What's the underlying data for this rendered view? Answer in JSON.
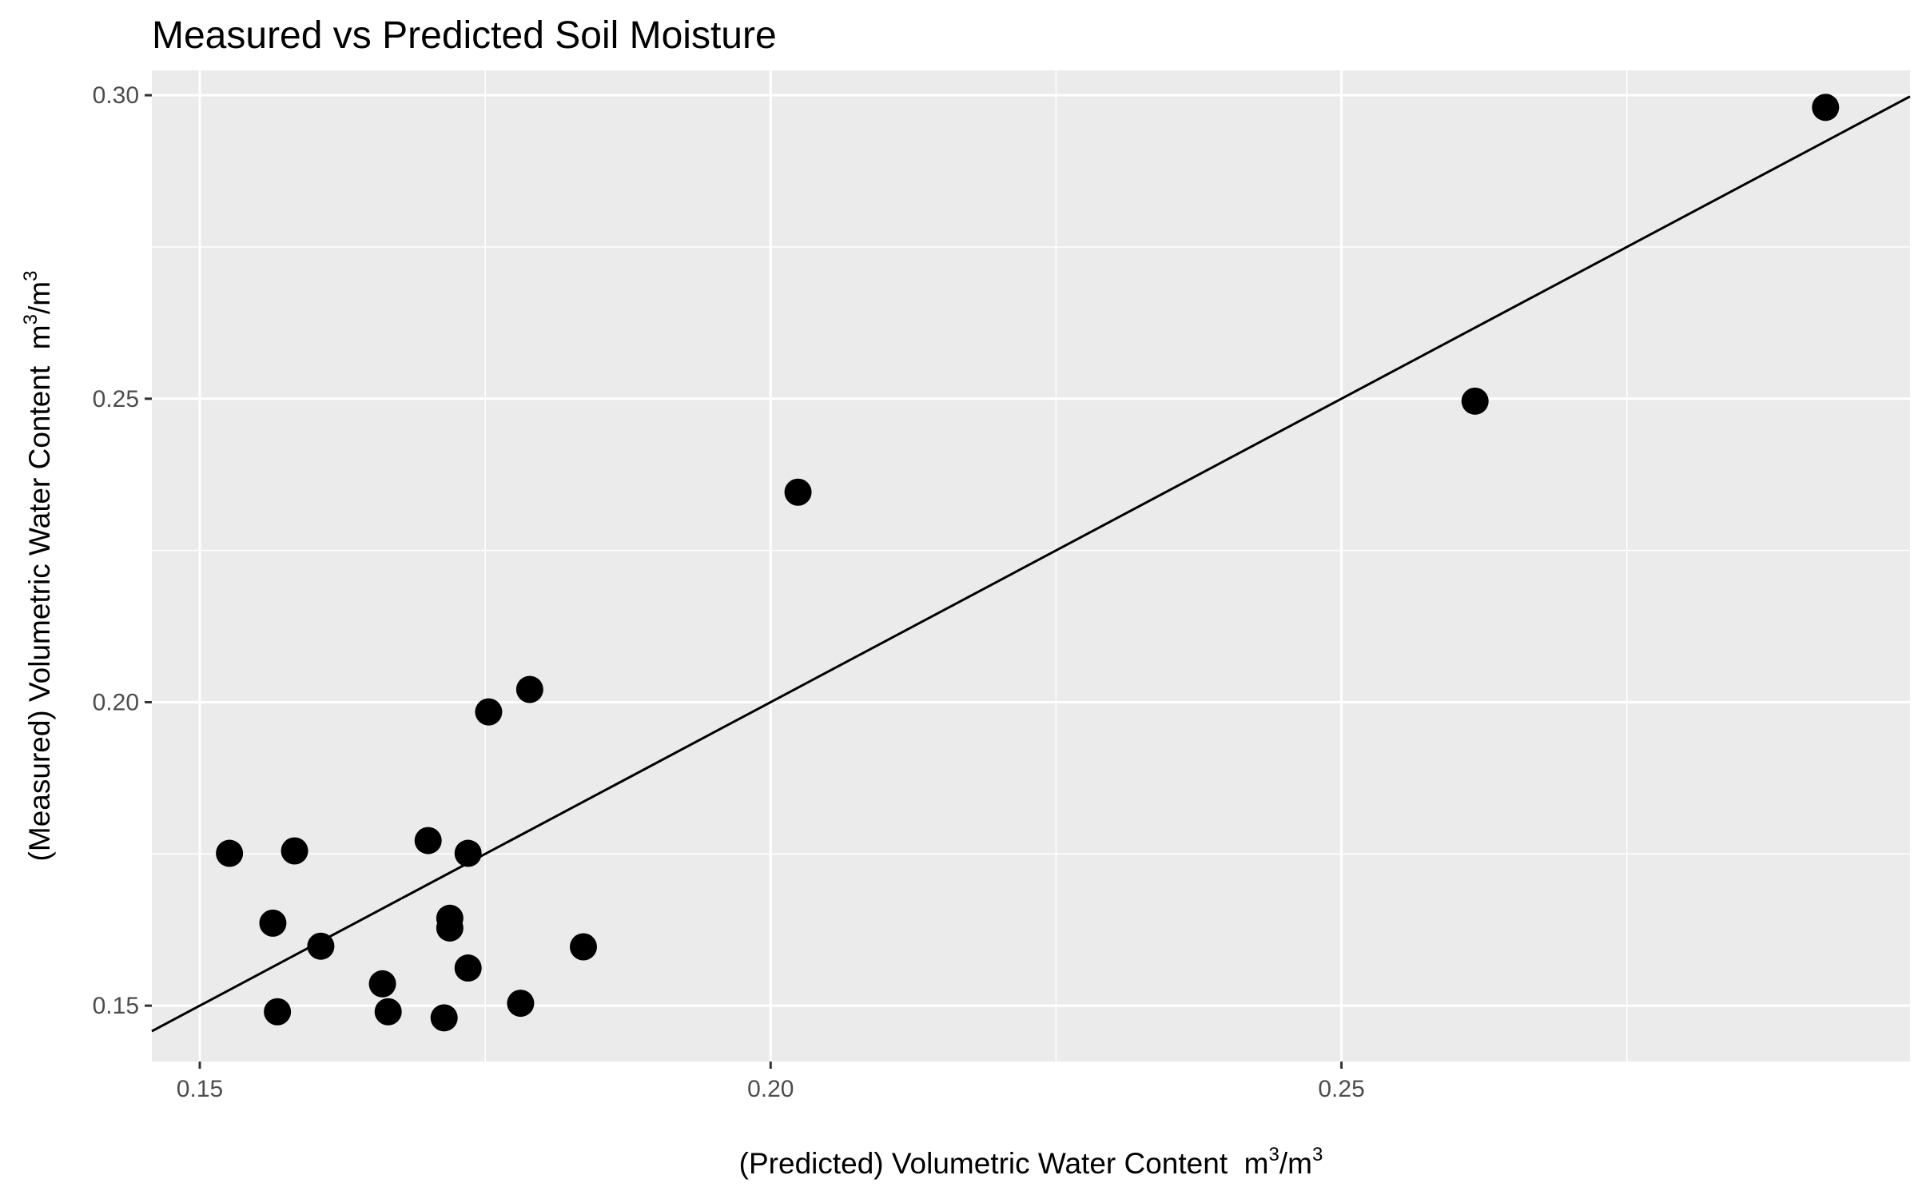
{
  "chart_data": {
    "type": "scatter",
    "title": "Measured vs Predicted Soil Moisture",
    "xlabel": {
      "text": "(Predicted) Volumetric Water Content",
      "unit_base": "m",
      "unit_sup": "3",
      "unit_sep": "/",
      "unit_base2": "m",
      "unit_sup2": "3"
    },
    "ylabel": {
      "text": "(Measured) Volumetric Water Content",
      "unit_base": "m",
      "unit_sup": "3",
      "unit_sep": "/",
      "unit_base2": "m",
      "unit_sup2": "3"
    },
    "xlim": [
      0.1458,
      0.2998
    ],
    "ylim": [
      0.1408,
      0.3041
    ],
    "x_ticks": [
      0.15,
      0.2,
      0.25
    ],
    "x_tick_labels": [
      "0.15",
      "0.20",
      "0.25"
    ],
    "x_minor": [
      0.175,
      0.225,
      0.275
    ],
    "y_ticks": [
      0.15,
      0.2,
      0.25,
      0.3
    ],
    "y_tick_labels": [
      "0.15",
      "0.20",
      "0.25",
      "0.30"
    ],
    "y_minor": [
      0.175,
      0.225,
      0.275
    ],
    "grid": true,
    "background": "#ebebeb",
    "grid_color": "#ffffff",
    "point_color": "#000000",
    "reference_line": {
      "label": "1:1 line",
      "slope": 1,
      "intercept": 0,
      "color": "#000000"
    },
    "points": [
      {
        "x": 0.1526,
        "y": 0.1751
      },
      {
        "x": 0.1564,
        "y": 0.1636
      },
      {
        "x": 0.1568,
        "y": 0.149
      },
      {
        "x": 0.1583,
        "y": 0.1755
      },
      {
        "x": 0.1606,
        "y": 0.1598
      },
      {
        "x": 0.166,
        "y": 0.1536
      },
      {
        "x": 0.1665,
        "y": 0.149
      },
      {
        "x": 0.17,
        "y": 0.1772
      },
      {
        "x": 0.1714,
        "y": 0.148
      },
      {
        "x": 0.1719,
        "y": 0.1644
      },
      {
        "x": 0.1719,
        "y": 0.1628
      },
      {
        "x": 0.1735,
        "y": 0.1751
      },
      {
        "x": 0.1735,
        "y": 0.1562
      },
      {
        "x": 0.1753,
        "y": 0.1984
      },
      {
        "x": 0.1781,
        "y": 0.1504
      },
      {
        "x": 0.1789,
        "y": 0.2021
      },
      {
        "x": 0.1836,
        "y": 0.1597
      },
      {
        "x": 0.2024,
        "y": 0.2346
      },
      {
        "x": 0.2617,
        "y": 0.2496
      },
      {
        "x": 0.2924,
        "y": 0.298
      }
    ]
  }
}
